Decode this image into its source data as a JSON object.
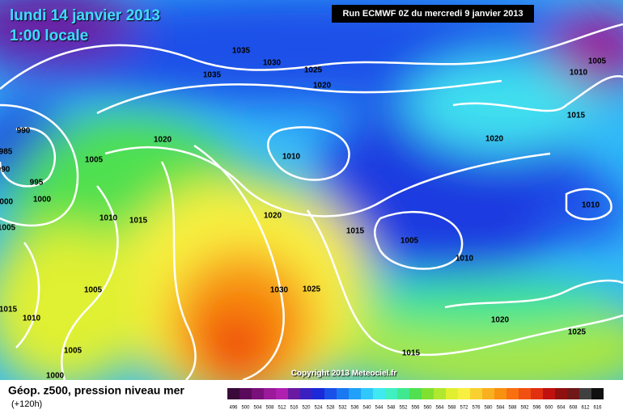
{
  "header": {
    "title": "lundi 14 janvier 2013",
    "time": "1:00 locale",
    "run": "Run ECMWF 0Z du mercredi 9 janvier 2013"
  },
  "copyright": "Copyright 2013 Meteociel.fr",
  "legend": {
    "title": "Géop. z500, pression niveau mer",
    "lead": "(+120h)"
  },
  "isobar_labels": [
    1035,
    1030,
    1035,
    1025,
    1020,
    1005,
    1010,
    1015,
    990,
    985,
    990,
    995,
    1000,
    1000,
    1005,
    1020,
    1010,
    1020,
    1010,
    1010,
    1015,
    1020,
    1005,
    1015,
    1005,
    1010,
    1005,
    1030,
    1025,
    1015,
    1010,
    1020,
    1025,
    1005,
    1015,
    1000
  ],
  "scale": {
    "values": [
      496,
      500,
      504,
      508,
      512,
      516,
      520,
      524,
      528,
      532,
      536,
      540,
      544,
      548,
      552,
      556,
      560,
      564,
      568,
      572,
      576,
      580,
      584,
      588,
      592,
      596,
      600,
      604,
      608,
      612,
      616
    ],
    "colors": [
      "#3a0a3a",
      "#5a0a5a",
      "#7a107a",
      "#9a1a9a",
      "#b020b0",
      "#6a1aa0",
      "#3a20c0",
      "#1a2ad8",
      "#1a50e8",
      "#1a78f0",
      "#20a0f8",
      "#30c8f8",
      "#40e8f0",
      "#40f0c0",
      "#40e890",
      "#50e050",
      "#80e030",
      "#b0e830",
      "#e0f030",
      "#f8f040",
      "#f8d030",
      "#f8b020",
      "#f89010",
      "#f87010",
      "#f05010",
      "#e03010",
      "#c01010",
      "#901010",
      "#701818",
      "#404040",
      "#101010"
    ]
  }
}
